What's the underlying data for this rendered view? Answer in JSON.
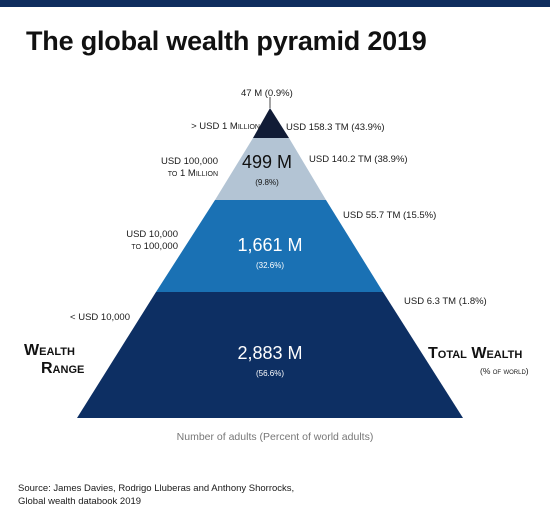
{
  "title": "The global wealth pyramid 2019",
  "colors": {
    "top_band": "#111c36",
    "tier2": "#b3c4d4",
    "tier3": "#1a71b4",
    "base": "#0d2f63",
    "text_light": "#ffffff",
    "text_dark": "#111111",
    "axis_caption": "#777777",
    "top_bar": "#0f2d5e"
  },
  "tiers": [
    {
      "range_label": "> USD 1 Million",
      "adults_label": "47 M (0.9%)",
      "wealth_label": "USD 158.3 TM (43.9%)"
    },
    {
      "range_label_line1": "USD 100,000",
      "range_label_line2": "to 1 Million",
      "adults_value": "499 M",
      "adults_share": "(9.8%)",
      "wealth_label": "USD 140.2 TM (38.9%)"
    },
    {
      "range_label_line1": "USD 10,000",
      "range_label_line2": "to 100,000",
      "adults_value": "1,661 M",
      "adults_share": "(32.6%)",
      "wealth_label": "USD 55.7 TM (15.5%)"
    },
    {
      "range_label": "< USD 10,000",
      "adults_value": "2,883 M",
      "adults_share": "(56.6%)",
      "wealth_label": "USD 6.3 TM (1.8%)"
    }
  ],
  "left_heading": {
    "line1": "Wealth",
    "line2": "Range"
  },
  "right_heading": {
    "line1": "Total Wealth",
    "line2": "(% of world)"
  },
  "axis_caption": "Number of adults (Percent of world adults)",
  "source": {
    "line1": "Source: James Davies, Rodrigo Lluberas and Anthony Shorrocks,",
    "line2": "Global wealth databook 2019"
  }
}
